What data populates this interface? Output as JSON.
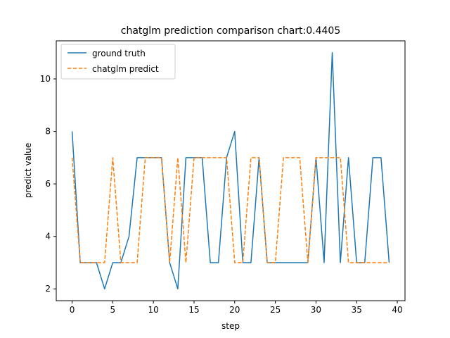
{
  "chart_data": {
    "type": "line",
    "title": "chatglm prediction comparison chart:0.4405",
    "xlabel": "step",
    "ylabel": "predict value",
    "xlim": [
      -1.95,
      40.95
    ],
    "ylim": [
      1.55,
      11.45
    ],
    "xticks": [
      0,
      5,
      10,
      15,
      20,
      25,
      30,
      35,
      40
    ],
    "yticks": [
      2,
      4,
      6,
      8,
      10
    ],
    "grid": false,
    "legend": "top-left",
    "x": [
      0,
      1,
      2,
      3,
      4,
      5,
      6,
      7,
      8,
      9,
      10,
      11,
      12,
      13,
      14,
      15,
      16,
      17,
      18,
      19,
      20,
      21,
      22,
      23,
      24,
      25,
      26,
      27,
      28,
      29,
      30,
      31,
      32,
      33,
      34,
      35,
      36,
      37,
      38,
      39
    ],
    "series": [
      {
        "name": "ground truth",
        "color": "#1f77b4",
        "style": "solid",
        "values": [
          8,
          3,
          3,
          3,
          2,
          3,
          3,
          4,
          7,
          7,
          7,
          7,
          3,
          2,
          7,
          7,
          7,
          3,
          3,
          7,
          8,
          3,
          3,
          7,
          3,
          3,
          3,
          3,
          3,
          3,
          7,
          3,
          11,
          3,
          7,
          3,
          3,
          7,
          7,
          3
        ]
      },
      {
        "name": "chatglm predict",
        "color": "#ff7f0e",
        "style": "dashed",
        "values": [
          7,
          3,
          3,
          3,
          3,
          7,
          3,
          3,
          3,
          7,
          7,
          7,
          3,
          7,
          3,
          7,
          7,
          7,
          7,
          7,
          3,
          3,
          7,
          7,
          3,
          3,
          7,
          7,
          7,
          3,
          7,
          7,
          7,
          7,
          3,
          3,
          3,
          3,
          3,
          3
        ]
      }
    ]
  }
}
